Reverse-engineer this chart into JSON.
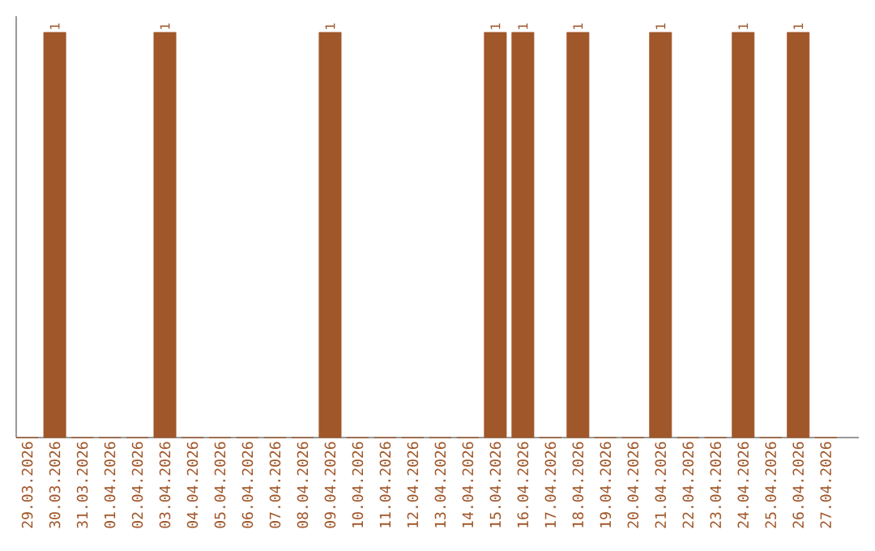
{
  "chart_data": {
    "type": "bar",
    "categories": [
      "29.03.2026",
      "30.03.2026",
      "31.03.2026",
      "01.04.2026",
      "02.04.2026",
      "03.04.2026",
      "04.04.2026",
      "05.04.2026",
      "06.04.2026",
      "07.04.2026",
      "08.04.2026",
      "09.04.2026",
      "10.04.2026",
      "11.04.2026",
      "12.04.2026",
      "13.04.2026",
      "14.04.2026",
      "15.04.2026",
      "16.04.2026",
      "17.04.2026",
      "18.04.2026",
      "19.04.2026",
      "20.04.2026",
      "21.04.2026",
      "22.04.2026",
      "23.04.2026",
      "24.04.2026",
      "25.04.2026",
      "26.04.2026",
      "27.04.2026"
    ],
    "values": [
      0,
      1,
      0,
      0,
      0,
      1,
      0,
      0,
      0,
      0,
      0,
      1,
      0,
      0,
      0,
      0,
      0,
      1,
      1,
      0,
      1,
      0,
      0,
      1,
      0,
      0,
      1,
      0,
      1,
      0
    ],
    "value_labels": [
      null,
      "1",
      null,
      null,
      null,
      "1",
      null,
      null,
      null,
      null,
      null,
      "1",
      null,
      null,
      null,
      null,
      null,
      "1",
      "1",
      null,
      "1",
      null,
      null,
      "1",
      null,
      null,
      "1",
      null,
      "1",
      null
    ],
    "color": "#a0572a",
    "ylim": [
      0,
      1.04
    ],
    "tick_labels": "x"
  }
}
